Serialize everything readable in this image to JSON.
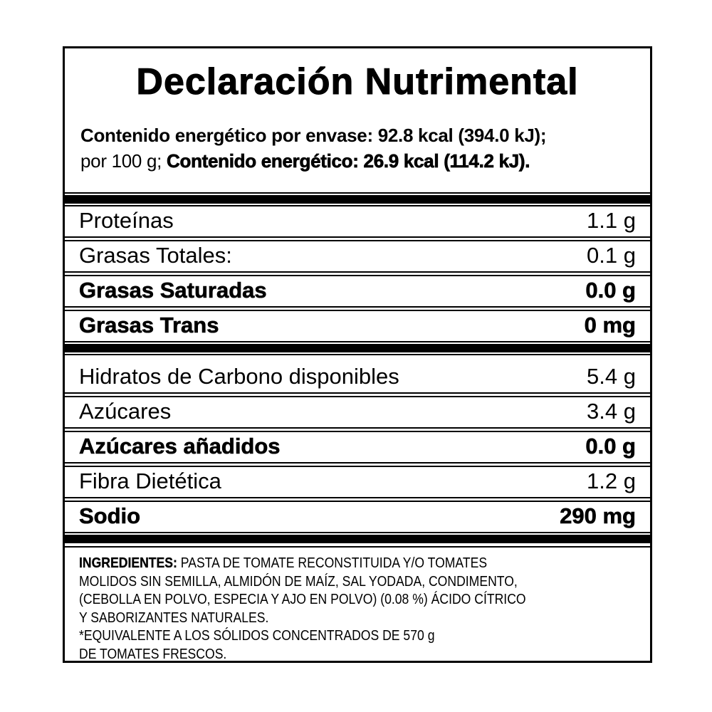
{
  "title": "Declaración Nutrimental",
  "energy": {
    "line1": "Contenido energético por envase: 92.8 kcal (394.0 kJ);",
    "line2_prefix": "por 100 g; ",
    "line2_bold": "Contenido energético: 26.9 kcal (114.2 kJ)."
  },
  "rows1": [
    {
      "label": "Proteínas",
      "value": "1.1 g"
    },
    {
      "label": "Grasas Totales:",
      "value": "0.1 g"
    },
    {
      "label": "Grasas Saturadas",
      "value": "0.0 g"
    },
    {
      "label": "Grasas Trans",
      "value": "0 mg"
    }
  ],
  "rows2": [
    {
      "label": "Hidratos de Carbono disponibles",
      "value": "5.4 g"
    },
    {
      "label": "Azúcares",
      "value": "3.4 g"
    },
    {
      "label": "Azúcares añadidos",
      "value": "0.0 g"
    },
    {
      "label": "Fibra Dietética",
      "value": "1.2 g"
    },
    {
      "label": "Sodio",
      "value": "290 mg"
    }
  ],
  "ingredients": {
    "heading": "INGREDIENTES:",
    "line1_rest": " PASTA DE TOMATE RECONSTITUIDA Y/O TOMATES",
    "lines": [
      "MOLIDOS SIN SEMILLA, ALMIDÓN DE MAÍZ, SAL YODADA, CONDIMENTO,",
      "(CEBOLLA EN POLVO, ESPECIA Y AJO EN POLVO) (0.08 %) ÁCIDO CÍTRICO",
      "Y SABORIZANTES NATURALES."
    ],
    "note_lines": [
      "*EQUIVALENTE A LOS SÓLIDOS CONCENTRADOS DE 570 g",
      "DE TOMATES FRESCOS."
    ]
  },
  "colors": {
    "text": "#000000",
    "background": "#ffffff",
    "border": "#000000"
  }
}
